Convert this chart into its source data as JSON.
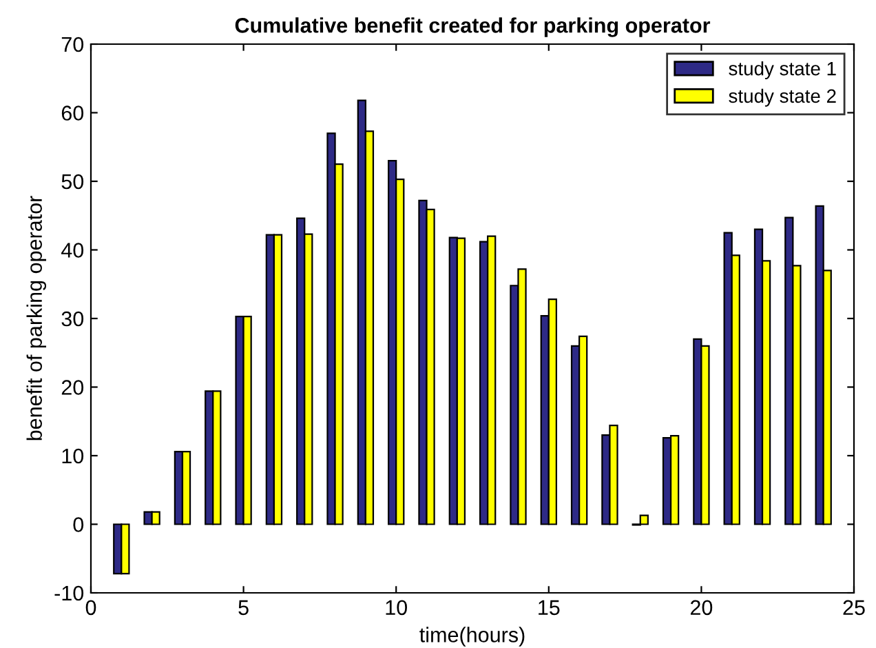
{
  "chart_data": {
    "type": "bar",
    "title": "Cumulative benefit created for parking operator",
    "xlabel": "time(hours)",
    "ylabel": "benefit of parking operator",
    "x": [
      1,
      2,
      3,
      4,
      5,
      6,
      7,
      8,
      9,
      10,
      11,
      12,
      13,
      14,
      15,
      16,
      17,
      18,
      19,
      20,
      21,
      22,
      23,
      24
    ],
    "series": [
      {
        "name": "study state 1",
        "color": "#2e2a86",
        "values": [
          -7.2,
          1.8,
          10.6,
          19.4,
          30.3,
          42.2,
          44.6,
          57.0,
          61.8,
          53.0,
          47.2,
          41.8,
          41.2,
          34.8,
          30.4,
          26.0,
          13.0,
          -0.1,
          12.6,
          27.0,
          42.5,
          43.0,
          44.7,
          46.4
        ]
      },
      {
        "name": "study state 2",
        "color": "#ffff00",
        "values": [
          -7.2,
          1.8,
          10.6,
          19.4,
          30.3,
          42.2,
          42.3,
          52.5,
          57.3,
          50.3,
          45.9,
          41.7,
          42.0,
          37.2,
          32.8,
          27.4,
          14.4,
          1.3,
          12.9,
          26.0,
          39.2,
          38.4,
          37.7,
          37.0
        ]
      }
    ],
    "xlim": [
      0,
      25
    ],
    "xticks": [
      0,
      5,
      10,
      15,
      20,
      25
    ],
    "ylim": [
      -10,
      70
    ],
    "yticks": [
      -10,
      0,
      10,
      20,
      30,
      40,
      50,
      60,
      70
    ],
    "grid": false,
    "legend": "top right"
  }
}
